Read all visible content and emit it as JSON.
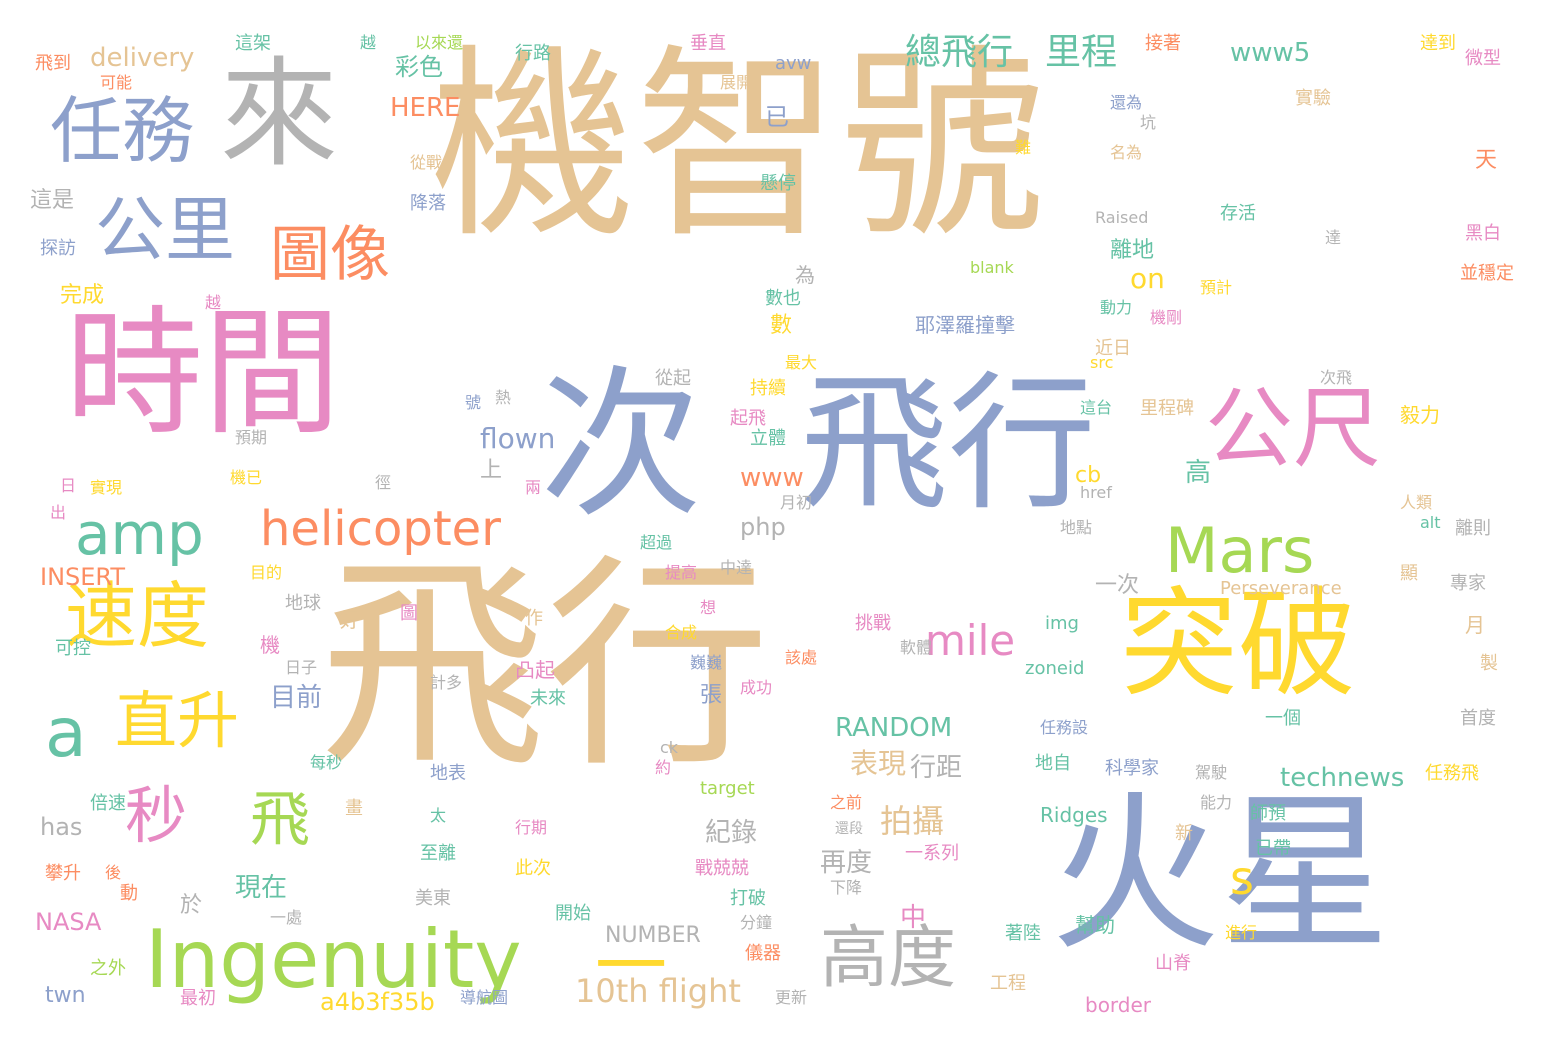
{
  "palette": {
    "tan": "#e5c494",
    "blue": "#8da0cb",
    "pink": "#e78ac3",
    "green": "#a6d854",
    "yellow": "#ffd92f",
    "orange": "#fc8d62",
    "teal": "#66c2a5",
    "gray": "#b3b3b3"
  },
  "words": [
    {
      "text": "機智號",
      "color": "tan"
    },
    {
      "text": "飛行",
      "color": "tan"
    },
    {
      "text": "時間",
      "color": "pink"
    },
    {
      "text": "次",
      "color": "blue"
    },
    {
      "text": "飛行",
      "color": "blue"
    },
    {
      "text": "火星",
      "color": "blue"
    },
    {
      "text": "來",
      "color": "gray"
    },
    {
      "text": "突破",
      "color": "yellow"
    },
    {
      "text": "公尺",
      "color": "pink"
    },
    {
      "text": "任務",
      "color": "blue"
    },
    {
      "text": "公里",
      "color": "blue"
    },
    {
      "text": "圖像",
      "color": "orange"
    },
    {
      "text": "Ingenuity",
      "color": "green"
    },
    {
      "text": "amp",
      "color": "teal"
    },
    {
      "text": "helicopter",
      "color": "orange"
    },
    {
      "text": "Mars",
      "color": "green"
    },
    {
      "text": "速度",
      "color": "yellow"
    },
    {
      "text": "a",
      "color": "teal"
    },
    {
      "text": "直升",
      "color": "yellow"
    },
    {
      "text": "秒",
      "color": "pink"
    },
    {
      "text": "飛",
      "color": "green"
    },
    {
      "text": "高度",
      "color": "gray"
    },
    {
      "text": "一",
      "color": "yellow"
    },
    {
      "text": "s",
      "color": "yellow"
    },
    {
      "text": "mile",
      "color": "pink"
    },
    {
      "text": "總飛行",
      "color": "teal"
    },
    {
      "text": "里程",
      "color": "teal"
    },
    {
      "text": "拍攝",
      "color": "tan"
    },
    {
      "text": "10th flight",
      "color": "tan"
    },
    {
      "text": "www5",
      "color": "teal"
    },
    {
      "text": "technews",
      "color": "teal"
    },
    {
      "text": "RANDOM",
      "color": "teal"
    },
    {
      "text": "flown",
      "color": "blue"
    },
    {
      "text": "表現",
      "color": "tan"
    },
    {
      "text": "行距",
      "color": "gray"
    },
    {
      "text": "目前",
      "color": "blue"
    },
    {
      "text": "現在",
      "color": "teal"
    },
    {
      "text": "紀錄",
      "color": "gray"
    },
    {
      "text": "再度",
      "color": "gray"
    },
    {
      "text": "delivery",
      "color": "tan"
    },
    {
      "text": "HERE",
      "color": "orange"
    },
    {
      "text": "彩色",
      "color": "teal"
    },
    {
      "text": "已",
      "color": "blue"
    },
    {
      "text": "on",
      "color": "yellow"
    },
    {
      "text": "離地",
      "color": "teal"
    },
    {
      "text": "數",
      "color": "yellow"
    },
    {
      "text": "www",
      "color": "orange"
    },
    {
      "text": "php",
      "color": "gray"
    },
    {
      "text": "cb",
      "color": "yellow"
    },
    {
      "text": "一次",
      "color": "gray"
    },
    {
      "text": "NUMBER",
      "color": "gray"
    },
    {
      "text": "NASA",
      "color": "pink"
    },
    {
      "text": "INSERT",
      "color": "orange"
    },
    {
      "text": "has",
      "color": "gray"
    },
    {
      "text": "a4b3f35b",
      "color": "yellow"
    },
    {
      "text": "twn",
      "color": "blue"
    },
    {
      "text": "上",
      "color": "gray"
    },
    {
      "text": "完成",
      "color": "yellow"
    },
    {
      "text": "這是",
      "color": "gray"
    },
    {
      "text": "飛到",
      "color": "orange"
    },
    {
      "text": "可能",
      "color": "orange"
    },
    {
      "text": "探訪",
      "color": "blue"
    },
    {
      "text": "越",
      "color": "pink"
    },
    {
      "text": "這架",
      "color": "teal"
    },
    {
      "text": "越",
      "color": "teal"
    },
    {
      "text": "以來還",
      "color": "green"
    },
    {
      "text": "行路",
      "color": "teal"
    },
    {
      "text": "垂直",
      "color": "pink"
    },
    {
      "text": "avw",
      "color": "blue"
    },
    {
      "text": "展開",
      "color": "tan"
    },
    {
      "text": "接著",
      "color": "orange"
    },
    {
      "text": "達到",
      "color": "yellow"
    },
    {
      "text": "微型",
      "color": "pink"
    },
    {
      "text": "實驗",
      "color": "tan"
    },
    {
      "text": "還為",
      "color": "blue"
    },
    {
      "text": "坑",
      "color": "gray"
    },
    {
      "text": "名為",
      "color": "tan"
    },
    {
      "text": "難",
      "color": "yellow"
    },
    {
      "text": "天",
      "color": "orange"
    },
    {
      "text": "存活",
      "color": "teal"
    },
    {
      "text": "Raised",
      "color": "gray"
    },
    {
      "text": "blank",
      "color": "green"
    },
    {
      "text": "達",
      "color": "gray"
    },
    {
      "text": "黑白",
      "color": "pink"
    },
    {
      "text": "並穩定",
      "color": "orange"
    },
    {
      "text": "預計",
      "color": "yellow"
    },
    {
      "text": "動力",
      "color": "teal"
    },
    {
      "text": "機剛",
      "color": "pink"
    },
    {
      "text": "從戰",
      "color": "tan"
    },
    {
      "text": "降落",
      "color": "blue"
    },
    {
      "text": "懸停",
      "color": "teal"
    },
    {
      "text": "為",
      "color": "gray"
    },
    {
      "text": "數也",
      "color": "teal"
    },
    {
      "text": "耶澤羅撞擊",
      "color": "blue"
    },
    {
      "text": "最大",
      "color": "yellow"
    },
    {
      "text": "近日",
      "color": "tan"
    },
    {
      "text": "src",
      "color": "yellow"
    },
    {
      "text": "次飛",
      "color": "gray"
    },
    {
      "text": "持續",
      "color": "yellow"
    },
    {
      "text": "這台",
      "color": "teal"
    },
    {
      "text": "里程碑",
      "color": "tan"
    },
    {
      "text": "毅力",
      "color": "yellow"
    },
    {
      "text": "起飛",
      "color": "pink"
    },
    {
      "text": "立體",
      "color": "teal"
    },
    {
      "text": "從起",
      "color": "gray"
    },
    {
      "text": "號",
      "color": "blue"
    },
    {
      "text": "熱",
      "color": "gray"
    },
    {
      "text": "預期",
      "color": "gray"
    },
    {
      "text": "機已",
      "color": "yellow"
    },
    {
      "text": "實現",
      "color": "yellow"
    },
    {
      "text": "徑",
      "color": "gray"
    },
    {
      "text": "日",
      "color": "pink"
    },
    {
      "text": "出",
      "color": "pink"
    },
    {
      "text": "兩",
      "color": "pink"
    },
    {
      "text": "月初",
      "color": "gray"
    },
    {
      "text": "高",
      "color": "teal"
    },
    {
      "text": "href",
      "color": "gray"
    },
    {
      "text": "人類",
      "color": "tan"
    },
    {
      "text": "alt",
      "color": "teal"
    },
    {
      "text": "離則",
      "color": "gray"
    },
    {
      "text": "地點",
      "color": "gray"
    },
    {
      "text": "超過",
      "color": "teal"
    },
    {
      "text": "中達",
      "color": "gray"
    },
    {
      "text": "目的",
      "color": "yellow"
    },
    {
      "text": "提高",
      "color": "pink"
    },
    {
      "text": "顯",
      "color": "tan"
    },
    {
      "text": "專家",
      "color": "gray"
    },
    {
      "text": "Perseverance",
      "color": "tan"
    },
    {
      "text": "地球",
      "color": "gray"
    },
    {
      "text": "好",
      "color": "tan"
    },
    {
      "text": "圖",
      "color": "pink"
    },
    {
      "text": "作",
      "color": "tan"
    },
    {
      "text": "想",
      "color": "pink"
    },
    {
      "text": "合成",
      "color": "yellow"
    },
    {
      "text": "挑戰",
      "color": "pink"
    },
    {
      "text": "軟體",
      "color": "gray"
    },
    {
      "text": "img",
      "color": "teal"
    },
    {
      "text": "月",
      "color": "tan"
    },
    {
      "text": "製",
      "color": "tan"
    },
    {
      "text": "機",
      "color": "pink"
    },
    {
      "text": "可控",
      "color": "teal"
    },
    {
      "text": "日子",
      "color": "gray"
    },
    {
      "text": "計多",
      "color": "gray"
    },
    {
      "text": "凸起",
      "color": "pink"
    },
    {
      "text": "未來",
      "color": "teal"
    },
    {
      "text": "巍巍",
      "color": "blue"
    },
    {
      "text": "該處",
      "color": "orange"
    },
    {
      "text": "張",
      "color": "blue"
    },
    {
      "text": "成功",
      "color": "pink"
    },
    {
      "text": "zoneid",
      "color": "teal"
    },
    {
      "text": "一個",
      "color": "teal"
    },
    {
      "text": "首度",
      "color": "gray"
    },
    {
      "text": "ck",
      "color": "gray"
    },
    {
      "text": "任務設",
      "color": "blue"
    },
    {
      "text": "每秒",
      "color": "teal"
    },
    {
      "text": "約",
      "color": "pink"
    },
    {
      "text": "地表",
      "color": "blue"
    },
    {
      "text": "target",
      "color": "green"
    },
    {
      "text": "地自",
      "color": "teal"
    },
    {
      "text": "科學家",
      "color": "blue"
    },
    {
      "text": "駕駛",
      "color": "gray"
    },
    {
      "text": "任務飛",
      "color": "yellow"
    },
    {
      "text": "倍速",
      "color": "teal"
    },
    {
      "text": "畫",
      "color": "tan"
    },
    {
      "text": "太",
      "color": "teal"
    },
    {
      "text": "行期",
      "color": "pink"
    },
    {
      "text": "之前",
      "color": "orange"
    },
    {
      "text": "Ridges",
      "color": "teal"
    },
    {
      "text": "能力",
      "color": "gray"
    },
    {
      "text": "師預",
      "color": "teal"
    },
    {
      "text": "還段",
      "color": "gray"
    },
    {
      "text": "新",
      "color": "tan"
    },
    {
      "text": "已帶",
      "color": "teal"
    },
    {
      "text": "攀升",
      "color": "orange"
    },
    {
      "text": "後",
      "color": "orange"
    },
    {
      "text": "至離",
      "color": "teal"
    },
    {
      "text": "此次",
      "color": "yellow"
    },
    {
      "text": "戰兢兢",
      "color": "pink"
    },
    {
      "text": "一系列",
      "color": "pink"
    },
    {
      "text": "下降",
      "color": "gray"
    },
    {
      "text": "動",
      "color": "orange"
    },
    {
      "text": "於",
      "color": "gray"
    },
    {
      "text": "美東",
      "color": "gray"
    },
    {
      "text": "打破",
      "color": "teal"
    },
    {
      "text": "中",
      "color": "pink"
    },
    {
      "text": "一處",
      "color": "gray"
    },
    {
      "text": "開始",
      "color": "teal"
    },
    {
      "text": "分鐘",
      "color": "gray"
    },
    {
      "text": "幫助",
      "color": "teal"
    },
    {
      "text": "著陸",
      "color": "teal"
    },
    {
      "text": "進行",
      "color": "yellow"
    },
    {
      "text": "之外",
      "color": "green"
    },
    {
      "text": "儀器",
      "color": "orange"
    },
    {
      "text": "山脊",
      "color": "pink"
    },
    {
      "text": "工程",
      "color": "tan"
    },
    {
      "text": "最初",
      "color": "pink"
    },
    {
      "text": "導航圖",
      "color": "blue"
    },
    {
      "text": "更新",
      "color": "gray"
    },
    {
      "text": "border",
      "color": "pink"
    }
  ]
}
